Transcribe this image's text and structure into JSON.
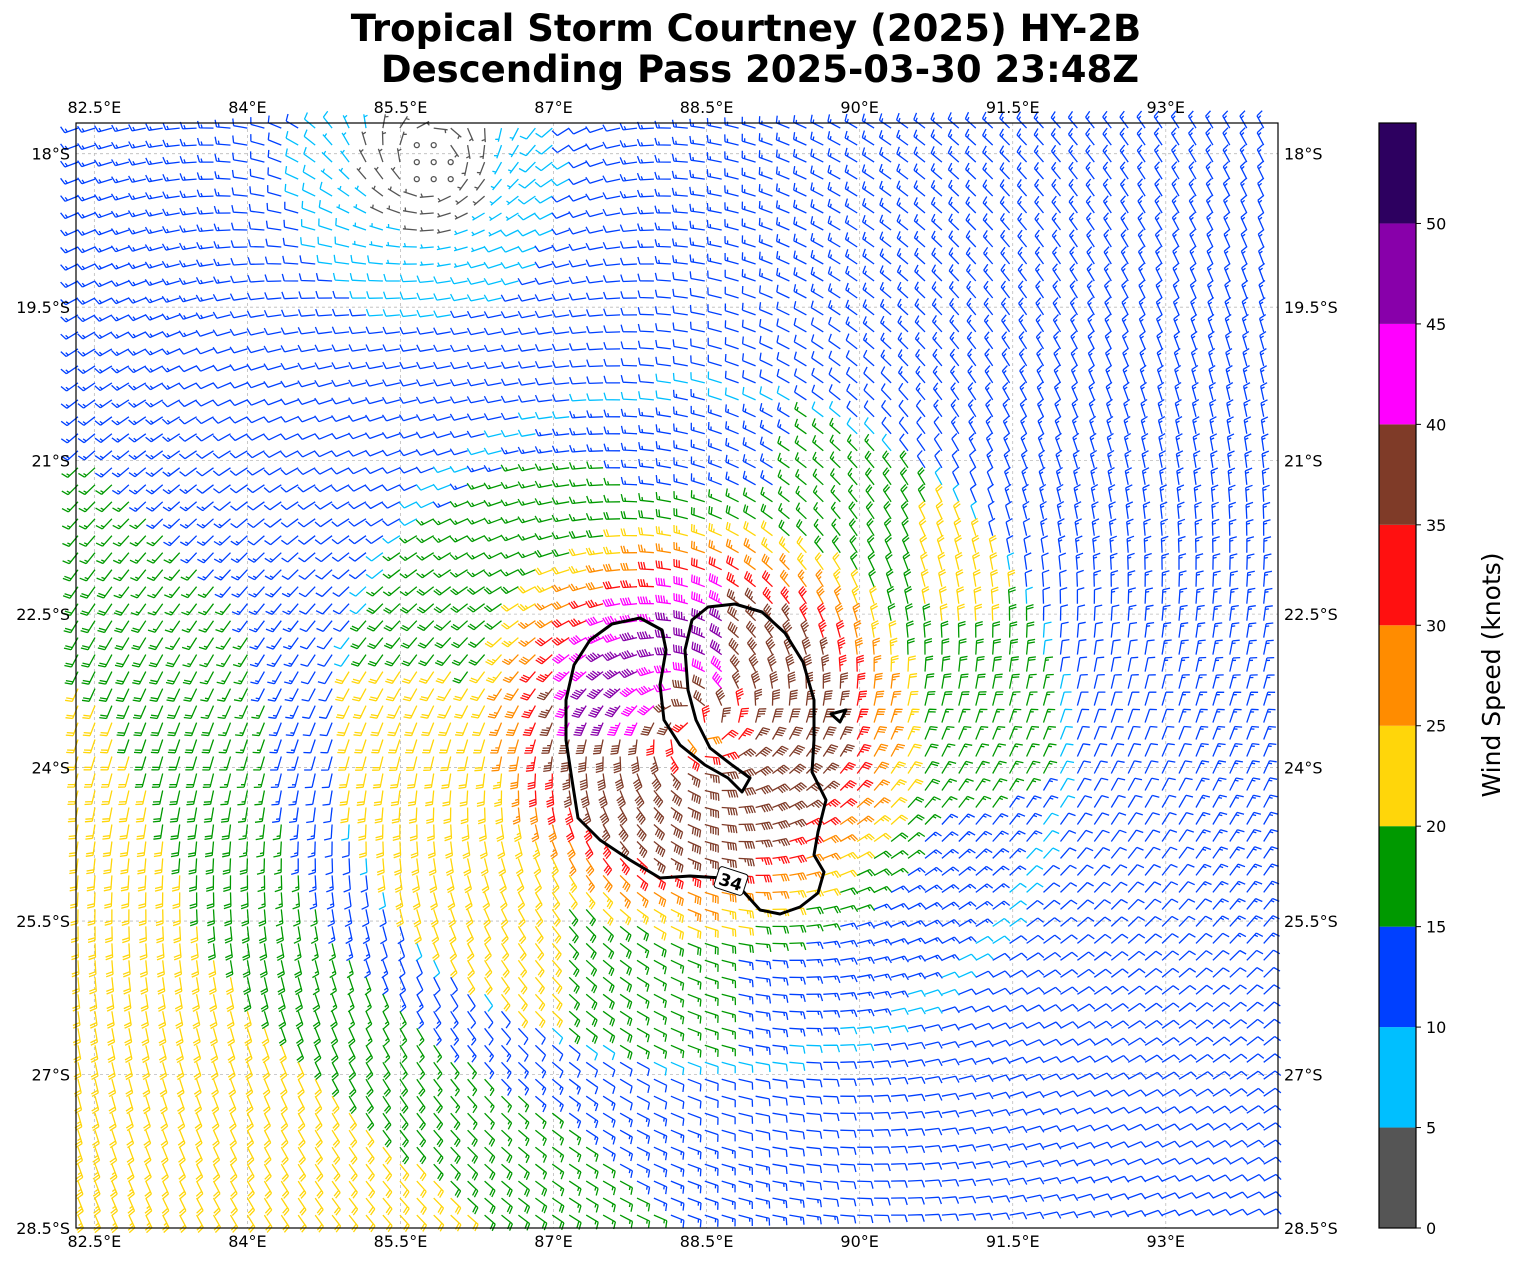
{
  "title": {
    "line1": "Tropical Storm Courtney (2025) HY-2B",
    "line2": "Descending Pass 2025-03-30 23:48Z"
  },
  "chart_data": {
    "type": "wind-barb map",
    "xlim": [
      82.32,
      94.1
    ],
    "ylim": [
      -28.5,
      -17.7
    ],
    "grid": true,
    "lon_ticks": [
      {
        "value": 82.5,
        "label": "82.5°E"
      },
      {
        "value": 84,
        "label": "84°E"
      },
      {
        "value": 85.5,
        "label": "85.5°E"
      },
      {
        "value": 87,
        "label": "87°E"
      },
      {
        "value": 88.5,
        "label": "88.5°E"
      },
      {
        "value": 90,
        "label": "90°E"
      },
      {
        "value": 91.5,
        "label": "91.5°E"
      },
      {
        "value": 93,
        "label": "93°E"
      }
    ],
    "lat_ticks": [
      {
        "value": -18,
        "label": "18°S"
      },
      {
        "value": -19.5,
        "label": "19.5°S"
      },
      {
        "value": -21,
        "label": "21°S"
      },
      {
        "value": -22.5,
        "label": "22.5°S"
      },
      {
        "value": -24,
        "label": "24°S"
      },
      {
        "value": -25.5,
        "label": "25.5°S"
      },
      {
        "value": -27,
        "label": "27°S"
      },
      {
        "value": -28.5,
        "label": "28.5°S"
      }
    ],
    "contour": {
      "level": 34,
      "label": "34",
      "color": "#000000"
    },
    "colorbar": {
      "label": "Wind Speed (knots)",
      "range": [
        0,
        55
      ],
      "ticks": [
        "0",
        "5",
        "10",
        "15",
        "20",
        "25",
        "30",
        "35",
        "40",
        "45",
        "50"
      ],
      "bins": [
        {
          "min": 0,
          "max": 5,
          "color": "#555555"
        },
        {
          "min": 5,
          "max": 10,
          "color": "#00bfff"
        },
        {
          "min": 10,
          "max": 15,
          "color": "#0040ff"
        },
        {
          "min": 15,
          "max": 20,
          "color": "#009900"
        },
        {
          "min": 20,
          "max": 25,
          "color": "#ffd60a"
        },
        {
          "min": 25,
          "max": 30,
          "color": "#ff8c00"
        },
        {
          "min": 30,
          "max": 35,
          "color": "#ff1010"
        },
        {
          "min": 35,
          "max": 40,
          "color": "#7f3b28"
        },
        {
          "min": 40,
          "max": 45,
          "color": "#ff00ff"
        },
        {
          "min": 45,
          "max": 50,
          "color": "#8800aa"
        },
        {
          "min": 50,
          "max": 55,
          "color": "#2d0060"
        }
      ]
    },
    "storm_center": {
      "lon": 88.4,
      "lat": -23.6
    },
    "max_wind_kt": 50
  }
}
